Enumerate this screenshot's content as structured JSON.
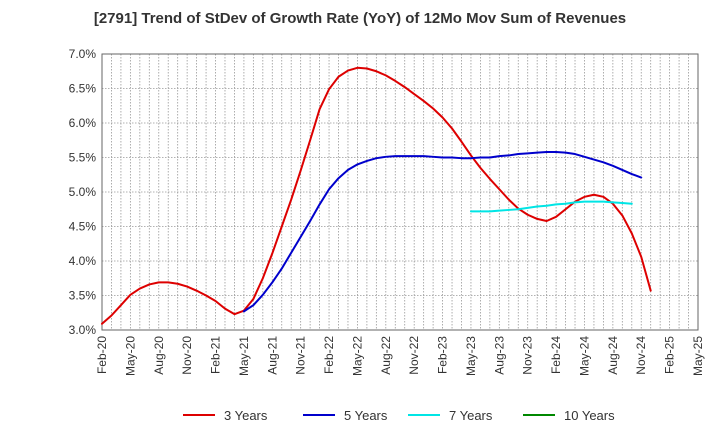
{
  "chart_data": {
    "type": "line",
    "title": "[2791]  Trend of StDev of Growth Rate (YoY) of 12Mo Mov Sum of Revenues",
    "xlabel": "",
    "ylabel": "",
    "ylim": [
      3.0,
      7.0
    ],
    "yticks": [
      "3.0%",
      "3.5%",
      "4.0%",
      "4.5%",
      "5.0%",
      "5.5%",
      "6.0%",
      "6.5%",
      "7.0%"
    ],
    "ytick_values": [
      3.0,
      3.5,
      4.0,
      4.5,
      5.0,
      5.5,
      6.0,
      6.5,
      7.0
    ],
    "x_months": [
      "Feb-20",
      "Mar-20",
      "Apr-20",
      "May-20",
      "Jun-20",
      "Jul-20",
      "Aug-20",
      "Sep-20",
      "Oct-20",
      "Nov-20",
      "Dec-20",
      "Jan-21",
      "Feb-21",
      "Mar-21",
      "Apr-21",
      "May-21",
      "Jun-21",
      "Jul-21",
      "Aug-21",
      "Sep-21",
      "Oct-21",
      "Nov-21",
      "Dec-21",
      "Jan-22",
      "Feb-22",
      "Mar-22",
      "Apr-22",
      "May-22",
      "Jun-22",
      "Jul-22",
      "Aug-22",
      "Sep-22",
      "Oct-22",
      "Nov-22",
      "Dec-22",
      "Jan-23",
      "Feb-23",
      "Mar-23",
      "Apr-23",
      "May-23",
      "Jun-23",
      "Jul-23",
      "Aug-23",
      "Sep-23",
      "Oct-23",
      "Nov-23",
      "Dec-23",
      "Jan-24",
      "Feb-24",
      "Mar-24",
      "Apr-24",
      "May-24",
      "Jun-24",
      "Jul-24",
      "Aug-24",
      "Sep-24",
      "Oct-24",
      "Nov-24",
      "Dec-24",
      "Jan-25",
      "Feb-25",
      "Mar-25",
      "Apr-25",
      "May-25"
    ],
    "xtick_labels": [
      "Feb-20",
      "May-20",
      "Aug-20",
      "Nov-20",
      "Feb-21",
      "May-21",
      "Aug-21",
      "Nov-21",
      "Feb-22",
      "May-22",
      "Aug-22",
      "Nov-22",
      "Feb-23",
      "May-23",
      "Aug-23",
      "Nov-23",
      "Feb-24",
      "May-24",
      "Aug-24",
      "Nov-24",
      "Feb-25",
      "May-25"
    ],
    "grid": true,
    "legend_position": "bottom",
    "series": [
      {
        "name": "3 Years",
        "color": "#dd0000",
        "start_index": 0,
        "values": [
          3.09,
          3.21,
          3.36,
          3.51,
          3.6,
          3.66,
          3.69,
          3.69,
          3.67,
          3.63,
          3.57,
          3.5,
          3.42,
          3.31,
          3.23,
          3.28,
          3.45,
          3.75,
          4.11,
          4.5,
          4.89,
          5.31,
          5.75,
          6.2,
          6.49,
          6.67,
          6.76,
          6.8,
          6.79,
          6.75,
          6.69,
          6.61,
          6.52,
          6.42,
          6.32,
          6.21,
          6.08,
          5.92,
          5.73,
          5.53,
          5.35,
          5.19,
          5.04,
          4.89,
          4.76,
          4.67,
          4.61,
          4.58,
          4.64,
          4.75,
          4.86,
          4.93,
          4.96,
          4.93,
          4.83,
          4.66,
          4.4,
          4.06,
          3.57
        ]
      },
      {
        "name": "5 Years",
        "color": "#0000cc",
        "start_index": 15,
        "values": [
          3.27,
          3.36,
          3.51,
          3.69,
          3.89,
          4.12,
          4.35,
          4.58,
          4.82,
          5.04,
          5.2,
          5.32,
          5.4,
          5.45,
          5.49,
          5.51,
          5.52,
          5.52,
          5.52,
          5.52,
          5.51,
          5.5,
          5.5,
          5.49,
          5.49,
          5.5,
          5.5,
          5.52,
          5.53,
          5.55,
          5.56,
          5.57,
          5.58,
          5.58,
          5.57,
          5.55,
          5.51,
          5.47,
          5.43,
          5.38,
          5.32,
          5.26,
          5.21
        ]
      },
      {
        "name": "7 Years",
        "color": "#00e5e5",
        "start_index": 39,
        "values": [
          4.72,
          4.72,
          4.72,
          4.73,
          4.74,
          4.75,
          4.77,
          4.79,
          4.8,
          4.82,
          4.83,
          4.85,
          4.86,
          4.86,
          4.86,
          4.85,
          4.84,
          4.83
        ]
      },
      {
        "name": "10 Years",
        "color": "#008800",
        "start_index": 0,
        "values": []
      }
    ]
  }
}
